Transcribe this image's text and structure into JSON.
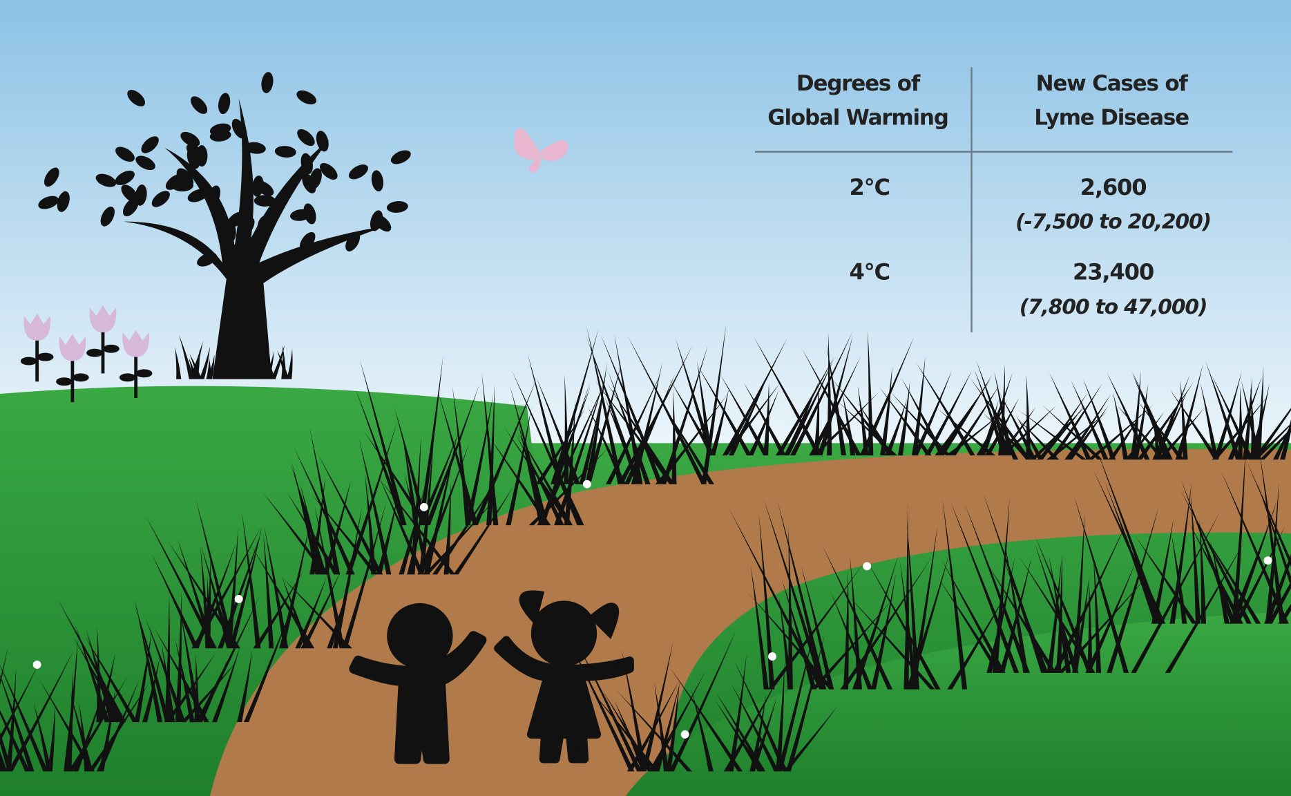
{
  "table": {
    "header": [
      "Degrees of",
      "Global Warming",
      "New Cases of",
      "Lyme Disease"
    ],
    "rows": [
      [
        "2°C",
        "2,600",
        "(-7,500 to 20,200)"
      ],
      [
        "4°C",
        "23,400",
        "(7,800 to 47,000)"
      ]
    ]
  }
}
